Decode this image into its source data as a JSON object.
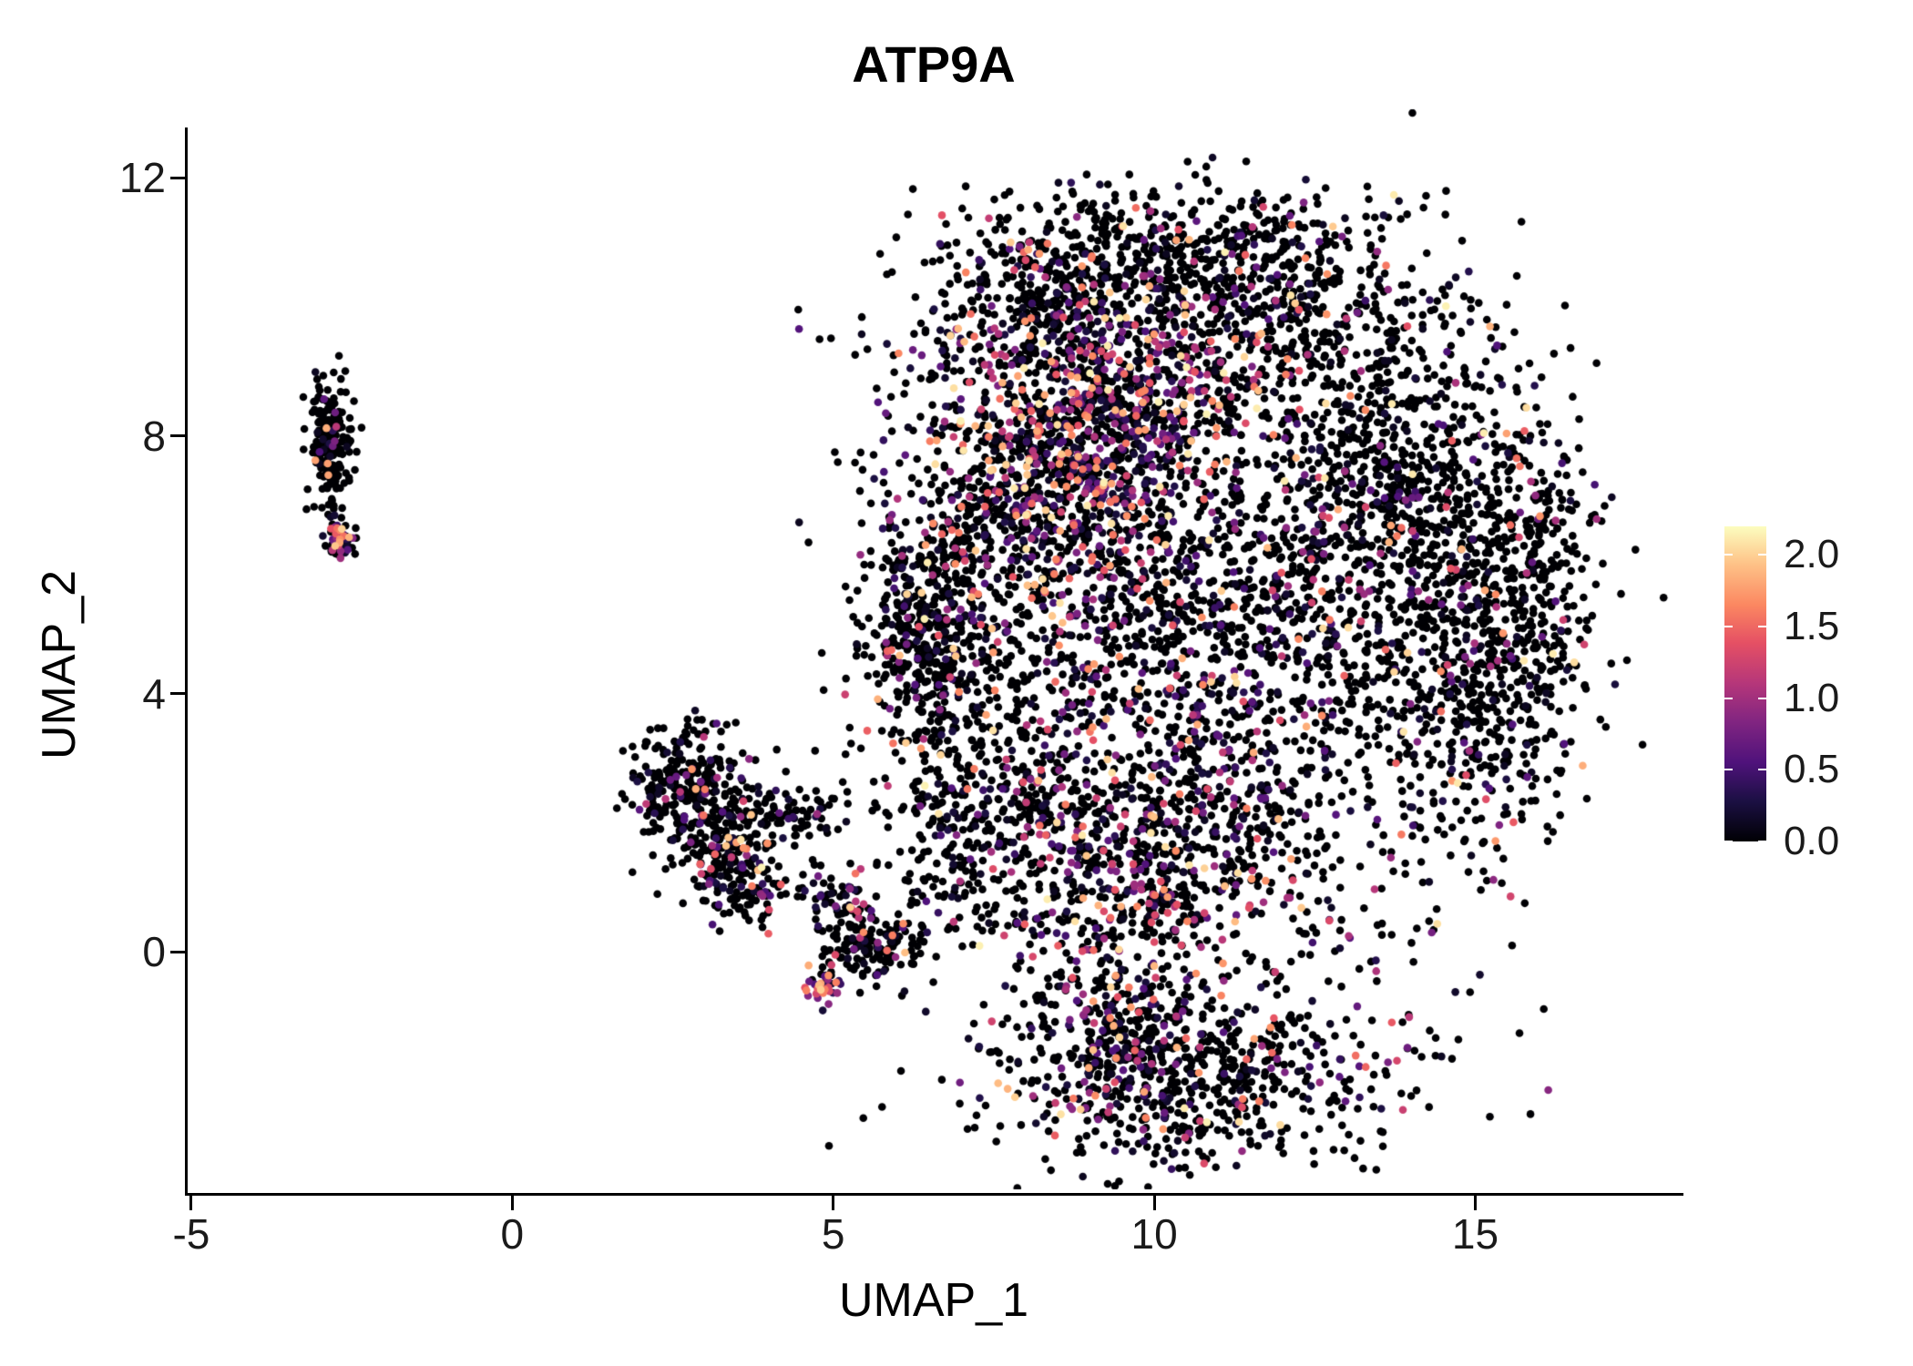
{
  "chart_data": {
    "type": "scatter",
    "title": "ATP9A",
    "xlabel": "UMAP_1",
    "ylabel": "UMAP_2",
    "xlim": [
      -5.07,
      18.2
    ],
    "ylim": [
      -3.74,
      12.78
    ],
    "xticks": [
      {
        "v": -5,
        "label": "-5"
      },
      {
        "v": 0,
        "label": "0"
      },
      {
        "v": 5,
        "label": "5"
      },
      {
        "v": 10,
        "label": "10"
      },
      {
        "v": 15,
        "label": "15"
      }
    ],
    "yticks": [
      {
        "v": 0,
        "label": "0"
      },
      {
        "v": 4,
        "label": "4"
      },
      {
        "v": 8,
        "label": "8"
      },
      {
        "v": 12,
        "label": "12"
      }
    ],
    "grid": false,
    "background": "#ffffff",
    "point_radius": 4.3,
    "legend": {
      "position": "right",
      "vmin": 0.0,
      "vmax": 2.2,
      "ticks": [
        {
          "v": 2.0,
          "label": "2.0"
        },
        {
          "v": 1.5,
          "label": "1.5"
        },
        {
          "v": 1.0,
          "label": "1.0"
        },
        {
          "v": 0.5,
          "label": "0.5"
        },
        {
          "v": 0.0,
          "label": "0.0"
        }
      ]
    },
    "colormap": {
      "name": "magma",
      "stops": [
        {
          "t": 0.0,
          "c": "#000004"
        },
        {
          "t": 0.13,
          "c": "#1c1044"
        },
        {
          "t": 0.25,
          "c": "#4f127b"
        },
        {
          "t": 0.38,
          "c": "#812581"
        },
        {
          "t": 0.5,
          "c": "#b5367a"
        },
        {
          "t": 0.63,
          "c": "#e55064"
        },
        {
          "t": 0.75,
          "c": "#fb8761"
        },
        {
          "t": 0.88,
          "c": "#fec287"
        },
        {
          "t": 1.0,
          "c": "#fcfdbf"
        }
      ]
    },
    "clusters": [
      {
        "name": "left-isolated-top",
        "cx": -2.85,
        "cy": 8.0,
        "sx": 0.16,
        "sy": 0.42,
        "n": 170,
        "p0": 0.88,
        "hot": 1.6
      },
      {
        "name": "left-isolated-mid",
        "cx": -2.78,
        "cy": 7.15,
        "sx": 0.09,
        "sy": 0.3,
        "n": 30,
        "p0": 0.9,
        "hot": 1.8
      },
      {
        "name": "left-isolated-low",
        "cx": -2.7,
        "cy": 6.4,
        "sx": 0.12,
        "sy": 0.18,
        "n": 70,
        "p0": 0.45,
        "hot": 1.3
      },
      {
        "name": "midleft-a",
        "cx": 2.7,
        "cy": 2.6,
        "sx": 0.42,
        "sy": 0.5,
        "n": 260,
        "p0": 0.8,
        "hot": 1.5
      },
      {
        "name": "midleft-b",
        "cx": 3.3,
        "cy": 1.5,
        "sx": 0.4,
        "sy": 0.45,
        "n": 180,
        "p0": 0.72,
        "hot": 1.4
      },
      {
        "name": "midleft-arm",
        "cx": 4.3,
        "cy": 2.1,
        "sx": 0.55,
        "sy": 0.22,
        "n": 90,
        "p0": 0.85,
        "hot": 1.6
      },
      {
        "name": "midleft-tail",
        "cx": 3.9,
        "cy": 0.95,
        "sx": 0.45,
        "sy": 0.28,
        "n": 55,
        "p0": 0.7,
        "hot": 1.4
      },
      {
        "name": "small-bottom",
        "cx": 5.6,
        "cy": 0.1,
        "sx": 0.45,
        "sy": 0.28,
        "n": 150,
        "p0": 0.78,
        "hot": 1.5
      },
      {
        "name": "small-bottom-hot",
        "cx": 4.85,
        "cy": -0.5,
        "sx": 0.12,
        "sy": 0.14,
        "n": 40,
        "p0": 0.25,
        "hot": 1.0
      },
      {
        "name": "small-bottom-upper",
        "cx": 5.05,
        "cy": 0.8,
        "sx": 0.3,
        "sy": 0.22,
        "n": 45,
        "p0": 0.6,
        "hot": 1.3
      },
      {
        "name": "main-top-ridge",
        "cx": 10.3,
        "cy": 10.9,
        "sx": 1.6,
        "sy": 0.5,
        "n": 420,
        "p0": 0.9,
        "hot": 1.8
      },
      {
        "name": "main-upper-core",
        "cx": 9.3,
        "cy": 8.8,
        "sx": 1.4,
        "sy": 1.15,
        "n": 900,
        "p0": 0.55,
        "hot": 1.2
      },
      {
        "name": "main-upper-right",
        "cx": 12.3,
        "cy": 9.4,
        "sx": 1.3,
        "sy": 1.0,
        "n": 480,
        "p0": 0.82,
        "hot": 1.6
      },
      {
        "name": "main-right-upper",
        "cx": 14.2,
        "cy": 7.2,
        "sx": 1.05,
        "sy": 1.2,
        "n": 540,
        "p0": 0.85,
        "hot": 1.7
      },
      {
        "name": "main-right-lower",
        "cx": 14.8,
        "cy": 4.3,
        "sx": 0.95,
        "sy": 1.4,
        "n": 540,
        "p0": 0.82,
        "hot": 1.6
      },
      {
        "name": "main-right-edge",
        "cx": 15.9,
        "cy": 5.6,
        "sx": 0.45,
        "sy": 1.5,
        "n": 240,
        "p0": 0.85,
        "hot": 1.8
      },
      {
        "name": "main-center",
        "cx": 10.3,
        "cy": 5.2,
        "sx": 1.8,
        "sy": 1.7,
        "n": 950,
        "p0": 0.72,
        "hot": 1.4
      },
      {
        "name": "main-center-right",
        "cx": 12.6,
        "cy": 5.6,
        "sx": 1.1,
        "sy": 1.3,
        "n": 300,
        "p0": 0.82,
        "hot": 1.6
      },
      {
        "name": "main-left-edge",
        "cx": 6.45,
        "cy": 4.9,
        "sx": 0.5,
        "sy": 0.9,
        "n": 420,
        "p0": 0.82,
        "hot": 1.5
      },
      {
        "name": "main-left-mid-lobe",
        "cx": 7.6,
        "cy": 6.7,
        "sx": 0.85,
        "sy": 1.25,
        "n": 430,
        "p0": 0.7,
        "hot": 1.3
      },
      {
        "name": "main-pink-band",
        "cx": 8.9,
        "cy": 7.4,
        "sx": 0.75,
        "sy": 1.2,
        "n": 430,
        "p0": 0.45,
        "hot": 1.1
      },
      {
        "name": "main-upperleft-notch",
        "cx": 8.2,
        "cy": 10.2,
        "sx": 0.75,
        "sy": 0.55,
        "n": 170,
        "p0": 0.82,
        "hot": 1.6
      },
      {
        "name": "main-lowerleft-arc",
        "cx": 7.4,
        "cy": 2.3,
        "sx": 0.85,
        "sy": 1.15,
        "n": 420,
        "p0": 0.76,
        "hot": 1.4
      },
      {
        "name": "main-bottom-central",
        "cx": 9.4,
        "cy": 0.8,
        "sx": 0.85,
        "sy": 1.3,
        "n": 440,
        "p0": 0.58,
        "hot": 1.2
      },
      {
        "name": "main-lower-middle",
        "cx": 11.2,
        "cy": 1.8,
        "sx": 1.25,
        "sy": 1.15,
        "n": 470,
        "p0": 0.78,
        "hot": 1.5
      },
      {
        "name": "main-bottom-lobe",
        "cx": 10.9,
        "cy": -1.9,
        "sx": 1.6,
        "sy": 0.75,
        "n": 560,
        "p0": 0.8,
        "hot": 1.5
      },
      {
        "name": "main-bottom-lobe-hot",
        "cx": 9.6,
        "cy": -1.6,
        "sx": 0.65,
        "sy": 0.65,
        "n": 200,
        "p0": 0.5,
        "hot": 1.2
      },
      {
        "name": "main-scatter-halo",
        "shape": "uniform",
        "cx": 10.5,
        "cy": 4.2,
        "w": 11.5,
        "h": 14.5,
        "n": 260,
        "p0": 0.8,
        "hot": 1.5
      },
      {
        "name": "outlier-right",
        "cx": 15.35,
        "cy": 9.3,
        "sx": 0.06,
        "sy": 0.06,
        "n": 2,
        "p0": 0.5,
        "hot": 1.2
      },
      {
        "name": "sparse-left-gap",
        "shape": "uniform",
        "cx": 4.6,
        "cy": 2.2,
        "w": 2.2,
        "h": 3.0,
        "n": 18,
        "p0": 0.7,
        "hot": 1.4
      }
    ]
  }
}
